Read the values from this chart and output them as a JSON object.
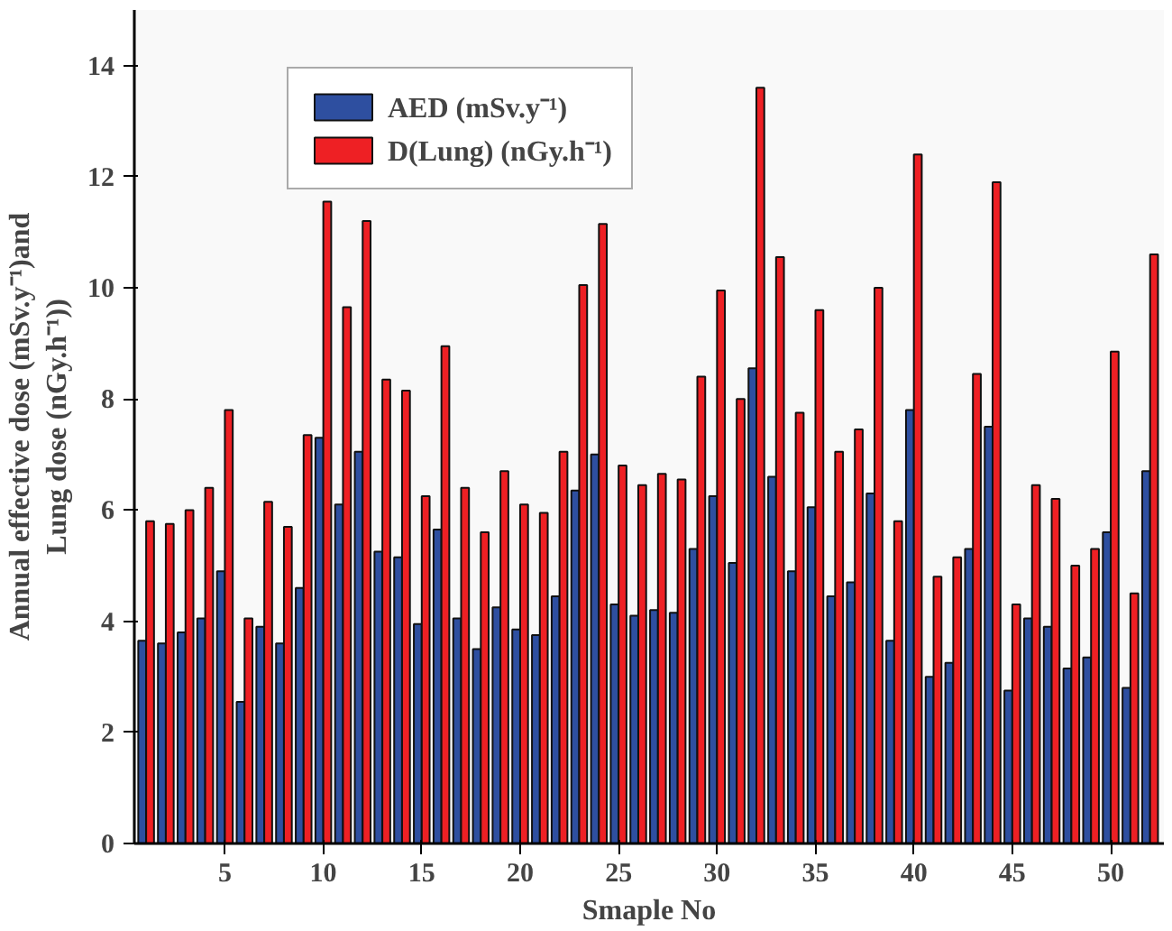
{
  "chart_data": {
    "type": "bar",
    "xlabel": "Smaple No",
    "ylabel": "Annual effective dose (mSv.y⁻¹)and\nLung dose (nGy.h⁻¹))",
    "x": [
      1,
      2,
      3,
      4,
      5,
      6,
      7,
      8,
      9,
      10,
      11,
      12,
      13,
      14,
      15,
      16,
      17,
      18,
      19,
      20,
      21,
      22,
      23,
      24,
      25,
      26,
      27,
      28,
      29,
      30,
      31,
      32,
      33,
      34,
      35,
      36,
      37,
      38,
      39,
      40,
      41,
      42,
      43,
      44,
      45,
      46,
      47,
      48,
      49,
      50,
      51,
      52
    ],
    "series": [
      {
        "name": "AED (mSv.y⁻¹)",
        "color": "#2e4fa0",
        "values": [
          3.65,
          3.6,
          3.8,
          4.05,
          4.9,
          2.55,
          3.9,
          3.6,
          4.6,
          7.3,
          6.1,
          7.05,
          5.25,
          5.15,
          3.95,
          5.65,
          4.05,
          3.5,
          4.25,
          3.85,
          3.75,
          4.45,
          6.35,
          7.0,
          4.3,
          4.1,
          4.2,
          4.15,
          5.3,
          6.25,
          5.05,
          8.55,
          6.6,
          4.9,
          6.05,
          4.45,
          4.7,
          6.3,
          3.65,
          7.8,
          3.0,
          3.25,
          5.3,
          7.5,
          2.75,
          4.05,
          3.9,
          3.15,
          3.35,
          5.6,
          2.8,
          6.7
        ]
      },
      {
        "name": "D(Lung) (nGy.h⁻¹)",
        "color": "#ee2024",
        "values": [
          5.8,
          5.75,
          6.0,
          6.4,
          7.8,
          4.05,
          6.15,
          5.7,
          7.35,
          11.55,
          9.65,
          11.2,
          8.35,
          8.15,
          6.25,
          8.95,
          6.4,
          5.6,
          6.7,
          6.1,
          5.95,
          7.05,
          10.05,
          11.15,
          6.8,
          6.45,
          6.65,
          6.55,
          8.4,
          9.95,
          8.0,
          13.6,
          10.55,
          7.75,
          9.6,
          7.05,
          7.45,
          10.0,
          5.8,
          12.4,
          4.8,
          5.15,
          8.45,
          11.9,
          4.3,
          6.45,
          6.2,
          5.0,
          5.3,
          8.85,
          4.5,
          10.6
        ]
      }
    ],
    "xlim": [
      0.4,
      52.7
    ],
    "xticks": [
      5,
      10,
      15,
      20,
      25,
      30,
      35,
      40,
      45,
      50
    ],
    "ylim": [
      0,
      15
    ],
    "yticks": [
      0,
      2,
      4,
      6,
      8,
      10,
      12,
      14
    ],
    "grid": false,
    "legend": "top"
  }
}
